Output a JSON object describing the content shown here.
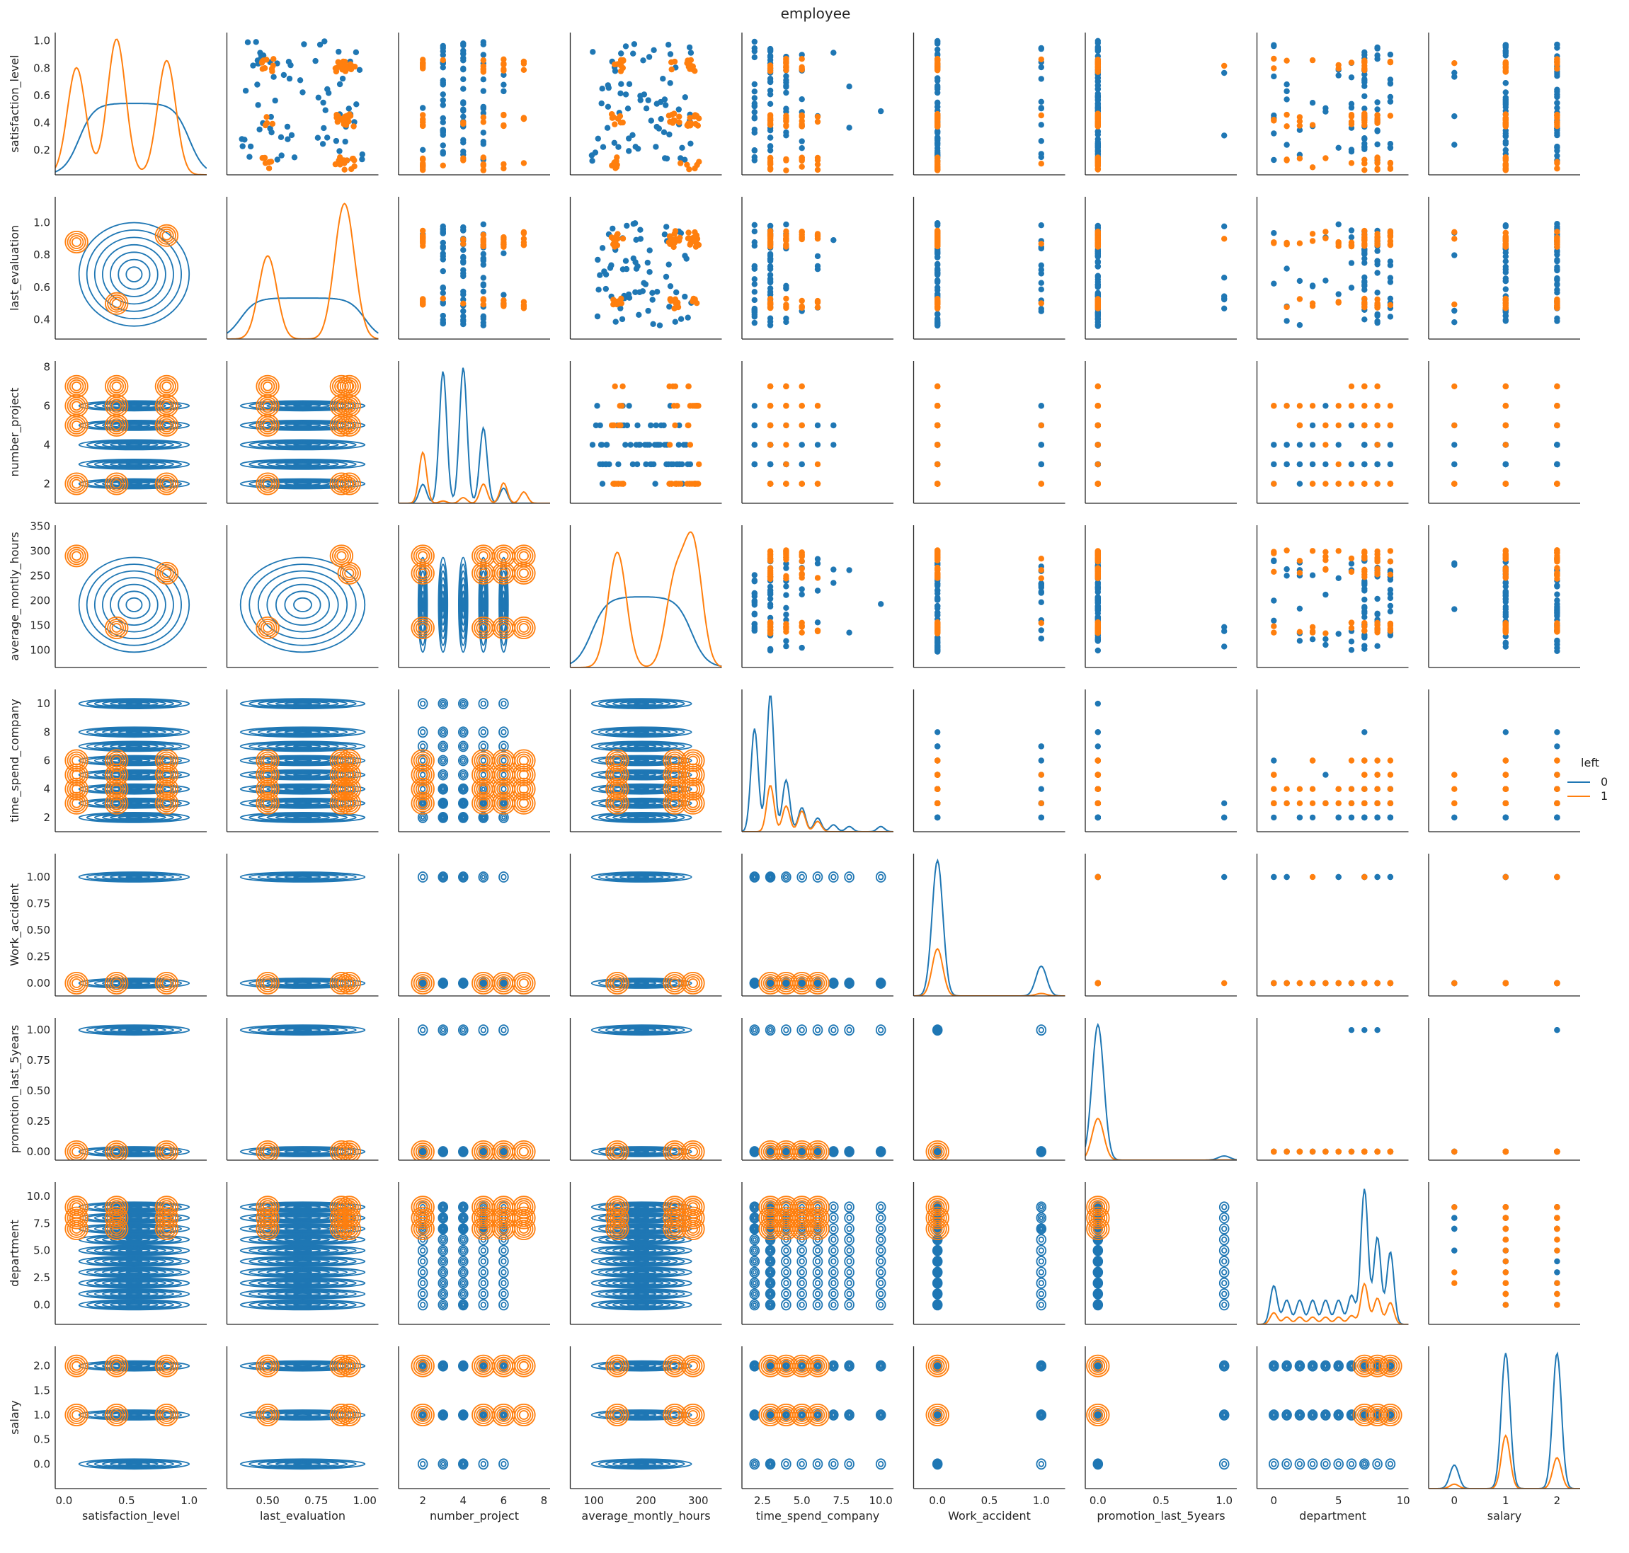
{
  "chart_data": {
    "type": "scatter",
    "title": "employee",
    "grid": false,
    "legend": {
      "title": "left",
      "placement": "right-center"
    },
    "hue": {
      "title": "left",
      "levels": [
        "0",
        "1"
      ],
      "colors": [
        "#1f77b4",
        "#ff7f0e"
      ]
    },
    "layout": "pairplot: upper=scatter, diag=kde, lower=kde contours",
    "variables": [
      {
        "name": "satisfaction_level",
        "lim": [
          -0.07,
          1.14
        ],
        "ticks": [
          0.0,
          0.5,
          1.0
        ],
        "ylim": [
          0.02,
          1.06
        ],
        "yticks": [
          0.2,
          0.4,
          0.6,
          0.8,
          1.0
        ],
        "discrete": false,
        "dist0": {
          "type": "uniform",
          "range": [
            0.12,
            1.0
          ]
        },
        "dist1": {
          "type": "clusters",
          "clusters": [
            [
              0.1,
              0.3
            ],
            [
              0.42,
              0.38
            ],
            [
              0.82,
              0.32
            ]
          ]
        }
      },
      {
        "name": "last_evaluation",
        "lim": [
          0.29,
          1.07
        ],
        "ticks": [
          0.5,
          0.75,
          1.0
        ],
        "ylim": [
          0.28,
          1.16
        ],
        "yticks": [
          0.4,
          0.6,
          0.8,
          1.0
        ],
        "discrete": false,
        "dist0": {
          "type": "uniform",
          "range": [
            0.36,
            1.0
          ]
        },
        "dist1": {
          "type": "clusters",
          "clusters": [
            [
              0.88,
              0.38
            ],
            [
              0.5,
              0.36
            ],
            [
              0.92,
              0.26
            ]
          ]
        }
      },
      {
        "name": "number_project",
        "lim": [
          0.8,
          8.3
        ],
        "ticks": [
          2,
          4,
          6,
          8
        ],
        "ylim": [
          1.0,
          8.3
        ],
        "yticks": [
          2,
          4,
          6,
          8
        ],
        "discrete": true,
        "values": [
          2,
          3,
          4,
          5,
          6,
          7
        ],
        "weights0": [
          0.05,
          0.35,
          0.36,
          0.2,
          0.04,
          0.0
        ],
        "weights1": [
          0.45,
          0.02,
          0.05,
          0.17,
          0.18,
          0.1
        ]
      },
      {
        "name": "average_montly_hours",
        "lim": [
          55,
          345
        ],
        "ticks": [
          100,
          200,
          300
        ],
        "ylim": [
          65,
          352
        ],
        "yticks": [
          100,
          150,
          200,
          250,
          300,
          350
        ],
        "discrete": false,
        "dist0": {
          "type": "uniform",
          "range": [
            96,
            287
          ]
        },
        "dist1": {
          "type": "clusters",
          "clusters": [
            [
              290,
              0.38
            ],
            [
              145,
              0.36
            ],
            [
              255,
              0.26
            ]
          ]
        }
      },
      {
        "name": "time_spend_company",
        "lim": [
          1.2,
          10.8
        ],
        "ticks": [
          2.5,
          5.0,
          7.5,
          10.0
        ],
        "ylim": [
          1.0,
          11.0
        ],
        "yticks": [
          2,
          4,
          6,
          8,
          10
        ],
        "discrete": true,
        "values": [
          2,
          3,
          4,
          5,
          6,
          7,
          8,
          10
        ],
        "weights0": [
          0.3,
          0.4,
          0.15,
          0.07,
          0.04,
          0.02,
          0.015,
          0.015
        ],
        "weights1": [
          0.0,
          0.45,
          0.25,
          0.2,
          0.1,
          0.0,
          0.0,
          0.0
        ]
      },
      {
        "name": "Work_accident",
        "lim": [
          -0.23,
          1.23
        ],
        "ticks": [
          0.0,
          0.5,
          1.0
        ],
        "ylim": [
          -0.12,
          1.22
        ],
        "yticks": [
          0.0,
          0.25,
          0.5,
          0.75,
          1.0
        ],
        "discrete": true,
        "values": [
          0,
          1
        ],
        "weights0": [
          0.82,
          0.18
        ],
        "weights1": [
          0.95,
          0.05
        ]
      },
      {
        "name": "promotion_last_5years",
        "lim": [
          -0.1,
          1.1
        ],
        "ticks": [
          0.0,
          0.5,
          1.0
        ],
        "ylim": [
          -0.07,
          1.1
        ],
        "yticks": [
          0.0,
          0.25,
          0.5,
          0.75,
          1.0
        ],
        "discrete": true,
        "values": [
          0,
          1
        ],
        "weights0": [
          0.97,
          0.03
        ],
        "weights1": [
          0.995,
          0.005
        ]
      },
      {
        "name": "department",
        "lim": [
          -1.3,
          10.4
        ],
        "ticks": [
          0,
          5,
          10
        ],
        "ylim": [
          -1.8,
          11.3
        ],
        "yticks": [
          0.0,
          2.5,
          5.0,
          7.5,
          10.0
        ],
        "discrete": true,
        "values": [
          0,
          1,
          2,
          3,
          4,
          5,
          6,
          7,
          8,
          9
        ],
        "weights0": [
          0.08,
          0.05,
          0.05,
          0.05,
          0.05,
          0.05,
          0.06,
          0.28,
          0.18,
          0.15
        ],
        "weights1": [
          0.08,
          0.05,
          0.05,
          0.05,
          0.05,
          0.05,
          0.06,
          0.28,
          0.18,
          0.15
        ]
      },
      {
        "name": "salary",
        "lim": [
          -0.5,
          2.45
        ],
        "ticks": [
          0,
          1,
          2
        ],
        "ylim": [
          -0.5,
          2.4
        ],
        "yticks": [
          0.0,
          0.5,
          1.0,
          1.5,
          2.0
        ],
        "discrete": true,
        "values": [
          0,
          1,
          2
        ],
        "weights0": [
          0.08,
          0.46,
          0.46
        ],
        "weights1": [
          0.05,
          0.6,
          0.35
        ]
      }
    ]
  }
}
